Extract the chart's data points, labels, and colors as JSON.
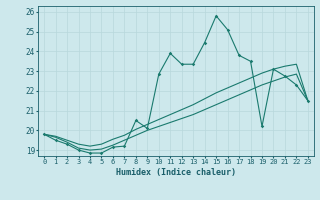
{
  "xlabel": "Humidex (Indice chaleur)",
  "xlim": [
    -0.5,
    23.5
  ],
  "ylim": [
    18.7,
    26.3
  ],
  "yticks": [
    19,
    20,
    21,
    22,
    23,
    24,
    25,
    26
  ],
  "xticks": [
    0,
    1,
    2,
    3,
    4,
    5,
    6,
    7,
    8,
    9,
    10,
    11,
    12,
    13,
    14,
    15,
    16,
    17,
    18,
    19,
    20,
    21,
    22,
    23
  ],
  "bg_color": "#cde8ec",
  "line_color": "#1a7a6e",
  "grid_color": "#b8d8dc",
  "font_color": "#1a5f6a",
  "line1_y": [
    19.8,
    19.5,
    19.3,
    19.0,
    18.85,
    18.85,
    19.15,
    19.2,
    20.5,
    20.1,
    22.85,
    23.9,
    23.35,
    23.35,
    24.45,
    25.8,
    25.1,
    23.8,
    23.5,
    20.2,
    23.1,
    22.75,
    22.3,
    21.5
  ],
  "line2_y": [
    19.8,
    19.7,
    19.5,
    19.3,
    19.2,
    19.3,
    19.55,
    19.75,
    20.05,
    20.3,
    20.55,
    20.8,
    21.05,
    21.3,
    21.6,
    21.9,
    22.15,
    22.4,
    22.65,
    22.9,
    23.1,
    23.25,
    23.35,
    21.5
  ],
  "line3_y": [
    19.8,
    19.65,
    19.4,
    19.1,
    19.0,
    19.05,
    19.25,
    19.5,
    19.75,
    20.0,
    20.2,
    20.4,
    20.6,
    20.8,
    21.05,
    21.3,
    21.55,
    21.8,
    22.05,
    22.3,
    22.5,
    22.7,
    22.85,
    21.5
  ]
}
